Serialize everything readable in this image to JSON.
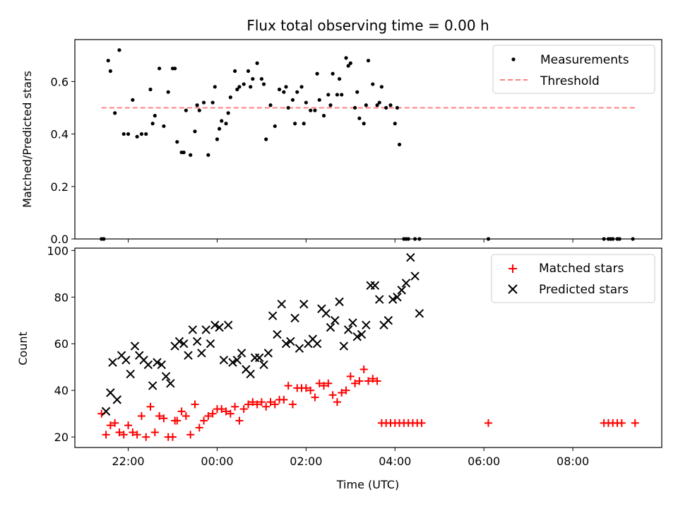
{
  "figure": {
    "title": "Flux total observing time = 0.00 h",
    "xlabel": "Time (UTC)"
  },
  "chart_data": [
    {
      "type": "scatter",
      "ylabel": "Matched/Predicted stars",
      "xlim_hours": [
        -3.2,
        10.0
      ],
      "ylim": [
        0,
        0.76
      ],
      "yticks": [
        0.0,
        0.2,
        0.4,
        0.6
      ],
      "ytick_labels": [
        "0.0",
        "0.2",
        "0.4",
        "0.6"
      ],
      "legend": {
        "position": "top-right",
        "entries": [
          "Measurements",
          "Threshold"
        ]
      },
      "threshold": {
        "name": "Threshold",
        "value": 0.5,
        "x_range_hours": [
          -2.6,
          9.4
        ],
        "color": "#ff8080",
        "style": "dashed"
      },
      "series": [
        {
          "name": "Measurements",
          "color": "#000000",
          "marker": "dot",
          "x_hours": [
            -2.6,
            -2.55,
            -2.45,
            -2.4,
            -2.3,
            -2.2,
            -2.1,
            -2.0,
            -1.9,
            -1.8,
            -1.7,
            -1.6,
            -1.5,
            -1.45,
            -1.4,
            -1.3,
            -1.2,
            -1.1,
            -1.0,
            -0.95,
            -0.9,
            -0.8,
            -0.75,
            -0.7,
            -0.6,
            -0.5,
            -0.45,
            -0.4,
            -0.3,
            -0.2,
            -0.1,
            -0.05,
            0.0,
            0.05,
            0.1,
            0.2,
            0.25,
            0.3,
            0.4,
            0.45,
            0.5,
            0.6,
            0.7,
            0.75,
            0.8,
            0.9,
            1.0,
            1.05,
            1.1,
            1.2,
            1.3,
            1.4,
            1.5,
            1.55,
            1.6,
            1.7,
            1.75,
            1.8,
            1.9,
            1.95,
            2.0,
            2.1,
            2.2,
            2.25,
            2.3,
            2.4,
            2.5,
            2.55,
            2.6,
            2.7,
            2.75,
            2.8,
            2.9,
            2.95,
            3.0,
            3.1,
            3.15,
            3.2,
            3.3,
            3.35,
            3.4,
            3.5,
            3.6,
            3.65,
            3.7,
            3.8,
            3.9,
            4.0,
            4.05,
            4.1,
            4.2,
            4.25,
            4.3,
            4.45,
            4.55,
            6.1,
            8.7,
            8.8,
            8.85,
            8.9,
            9.0,
            9.05,
            9.35
          ],
          "y": [
            0.0,
            0.0,
            0.68,
            0.64,
            0.48,
            0.72,
            0.4,
            0.4,
            0.53,
            0.39,
            0.4,
            0.4,
            0.57,
            0.44,
            0.47,
            0.65,
            0.43,
            0.56,
            0.65,
            0.65,
            0.37,
            0.33,
            0.33,
            0.49,
            0.32,
            0.41,
            0.51,
            0.49,
            0.52,
            0.32,
            0.52,
            0.58,
            0.38,
            0.42,
            0.45,
            0.44,
            0.48,
            0.54,
            0.64,
            0.57,
            0.58,
            0.59,
            0.64,
            0.58,
            0.61,
            0.67,
            0.61,
            0.59,
            0.38,
            0.51,
            0.43,
            0.57,
            0.56,
            0.58,
            0.5,
            0.53,
            0.44,
            0.56,
            0.58,
            0.44,
            0.52,
            0.49,
            0.49,
            0.63,
            0.53,
            0.47,
            0.55,
            0.51,
            0.63,
            0.55,
            0.61,
            0.55,
            0.69,
            0.66,
            0.67,
            0.5,
            0.56,
            0.46,
            0.44,
            0.51,
            0.68,
            0.59,
            0.51,
            0.52,
            0.58,
            0.5,
            0.51,
            0.44,
            0.5,
            0.36,
            0.0,
            0.0,
            0.0,
            0.0,
            0.0,
            0.0,
            0.0,
            0.0,
            0.0,
            0.0,
            0.0,
            0.0,
            0.0
          ]
        }
      ]
    },
    {
      "type": "scatter",
      "ylabel": "Count",
      "xlim_hours": [
        -3.2,
        10.0
      ],
      "ylim": [
        15.5,
        101
      ],
      "yticks": [
        20,
        40,
        60,
        80,
        100
      ],
      "ytick_labels": [
        "20",
        "40",
        "60",
        "80",
        "100"
      ],
      "xticks_hours": [
        -2,
        0,
        2,
        4,
        6,
        8
      ],
      "xtick_labels": [
        "22:00",
        "00:00",
        "02:00",
        "04:00",
        "06:00",
        "08:00"
      ],
      "legend": {
        "position": "top-right",
        "entries": [
          "Matched stars",
          "Predicted stars"
        ]
      },
      "series": [
        {
          "name": "Matched stars",
          "color": "#ff0000",
          "marker": "plus",
          "x_hours": [
            -2.6,
            -2.5,
            -2.4,
            -2.3,
            -2.2,
            -2.1,
            -2.0,
            -1.9,
            -1.8,
            -1.7,
            -1.6,
            -1.5,
            -1.4,
            -1.3,
            -1.2,
            -1.1,
            -1.0,
            -0.95,
            -0.9,
            -0.8,
            -0.7,
            -0.6,
            -0.5,
            -0.4,
            -0.3,
            -0.2,
            -0.1,
            0.0,
            0.1,
            0.2,
            0.3,
            0.4,
            0.5,
            0.6,
            0.7,
            0.8,
            0.9,
            1.0,
            1.1,
            1.2,
            1.3,
            1.4,
            1.5,
            1.6,
            1.7,
            1.8,
            1.9,
            2.0,
            2.1,
            2.2,
            2.3,
            2.4,
            2.5,
            2.6,
            2.7,
            2.8,
            2.9,
            3.0,
            3.1,
            3.2,
            3.3,
            3.4,
            3.5,
            3.6,
            3.7,
            3.8,
            3.9,
            4.0,
            4.1,
            4.2,
            4.3,
            4.4,
            4.5,
            4.6,
            6.1,
            8.7,
            8.8,
            8.9,
            9.0,
            9.1,
            9.4
          ],
          "y": [
            30,
            21,
            25,
            26,
            22,
            21,
            25,
            22,
            21,
            29,
            20,
            33,
            22,
            29,
            28,
            20,
            20,
            27,
            27,
            31,
            29,
            21,
            34,
            24,
            27,
            29,
            30,
            32,
            32,
            31,
            30,
            33,
            27,
            32,
            34,
            35,
            34,
            35,
            33,
            35,
            34,
            36,
            36,
            42,
            34,
            41,
            41,
            41,
            40,
            37,
            43,
            42,
            43,
            38,
            35,
            39,
            40,
            46,
            43,
            44,
            49,
            44,
            45,
            44,
            26,
            26,
            26,
            26,
            26,
            26,
            26,
            26,
            26,
            26,
            26,
            26,
            26,
            26,
            26,
            26,
            26
          ]
        },
        {
          "name": "Predicted stars",
          "color": "#000000",
          "marker": "x",
          "x_hours": [
            -2.5,
            -2.4,
            -2.35,
            -2.25,
            -2.15,
            -2.05,
            -1.95,
            -1.85,
            -1.75,
            -1.65,
            -1.55,
            -1.45,
            -1.35,
            -1.25,
            -1.15,
            -1.05,
            -0.95,
            -0.85,
            -0.75,
            -0.65,
            -0.55,
            -0.45,
            -0.35,
            -0.25,
            -0.15,
            -0.05,
            0.05,
            0.15,
            0.25,
            0.35,
            0.45,
            0.55,
            0.65,
            0.75,
            0.85,
            0.95,
            1.05,
            1.15,
            1.25,
            1.35,
            1.45,
            1.55,
            1.65,
            1.75,
            1.85,
            1.95,
            2.05,
            2.15,
            2.25,
            2.35,
            2.45,
            2.55,
            2.65,
            2.75,
            2.85,
            2.95,
            3.05,
            3.15,
            3.25,
            3.35,
            3.45,
            3.55,
            3.65,
            3.75,
            3.85,
            3.95,
            4.05,
            4.15,
            4.25,
            4.35,
            4.45,
            4.55
          ],
          "y": [
            31,
            39,
            52,
            36,
            55,
            53,
            47,
            59,
            55,
            53,
            51,
            42,
            52,
            51,
            46,
            43,
            59,
            61,
            60,
            55,
            66,
            61,
            56,
            66,
            60,
            68,
            67,
            53,
            68,
            52,
            53,
            56,
            49,
            47,
            54,
            54,
            51,
            56,
            72,
            64,
            77,
            60,
            61,
            71,
            58,
            77,
            60,
            62,
            60,
            75,
            73,
            67,
            70,
            78,
            59,
            66,
            69,
            63,
            64,
            68,
            85,
            85,
            79,
            68,
            70,
            79,
            80,
            83,
            86,
            97,
            89,
            73
          ]
        }
      ]
    }
  ]
}
